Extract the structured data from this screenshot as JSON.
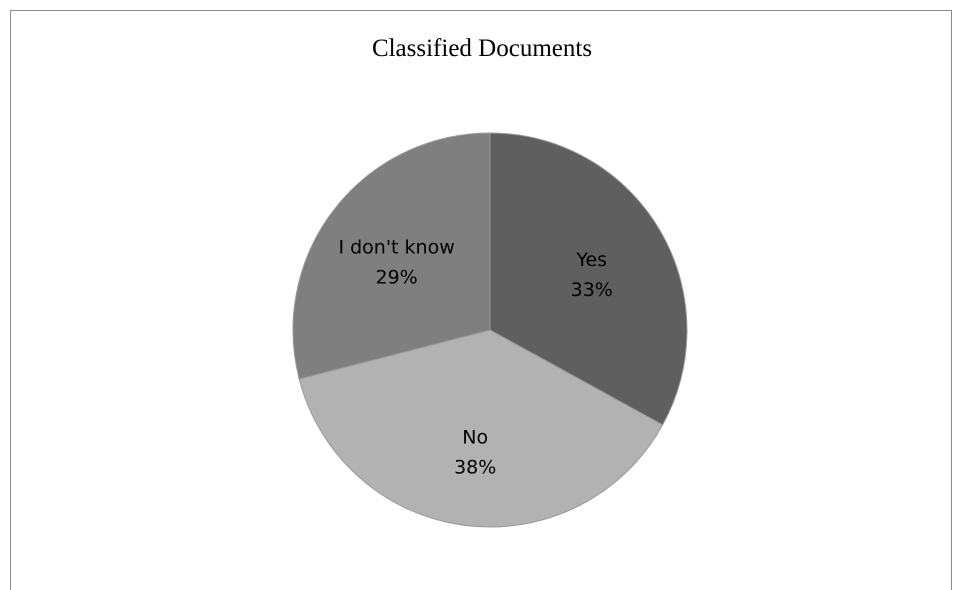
{
  "chart_data": {
    "type": "pie",
    "title": "Classified Documents",
    "categories": [
      "Yes",
      "No",
      "I don't know"
    ],
    "values": [
      33,
      38,
      29
    ],
    "value_labels": [
      "33%",
      "38%",
      "29%"
    ],
    "colors": [
      "#5f5f5f",
      "#b2b2b2",
      "#7f7f7f"
    ],
    "start_angle_deg": 0,
    "direction": "clockwise",
    "legend": "none"
  }
}
